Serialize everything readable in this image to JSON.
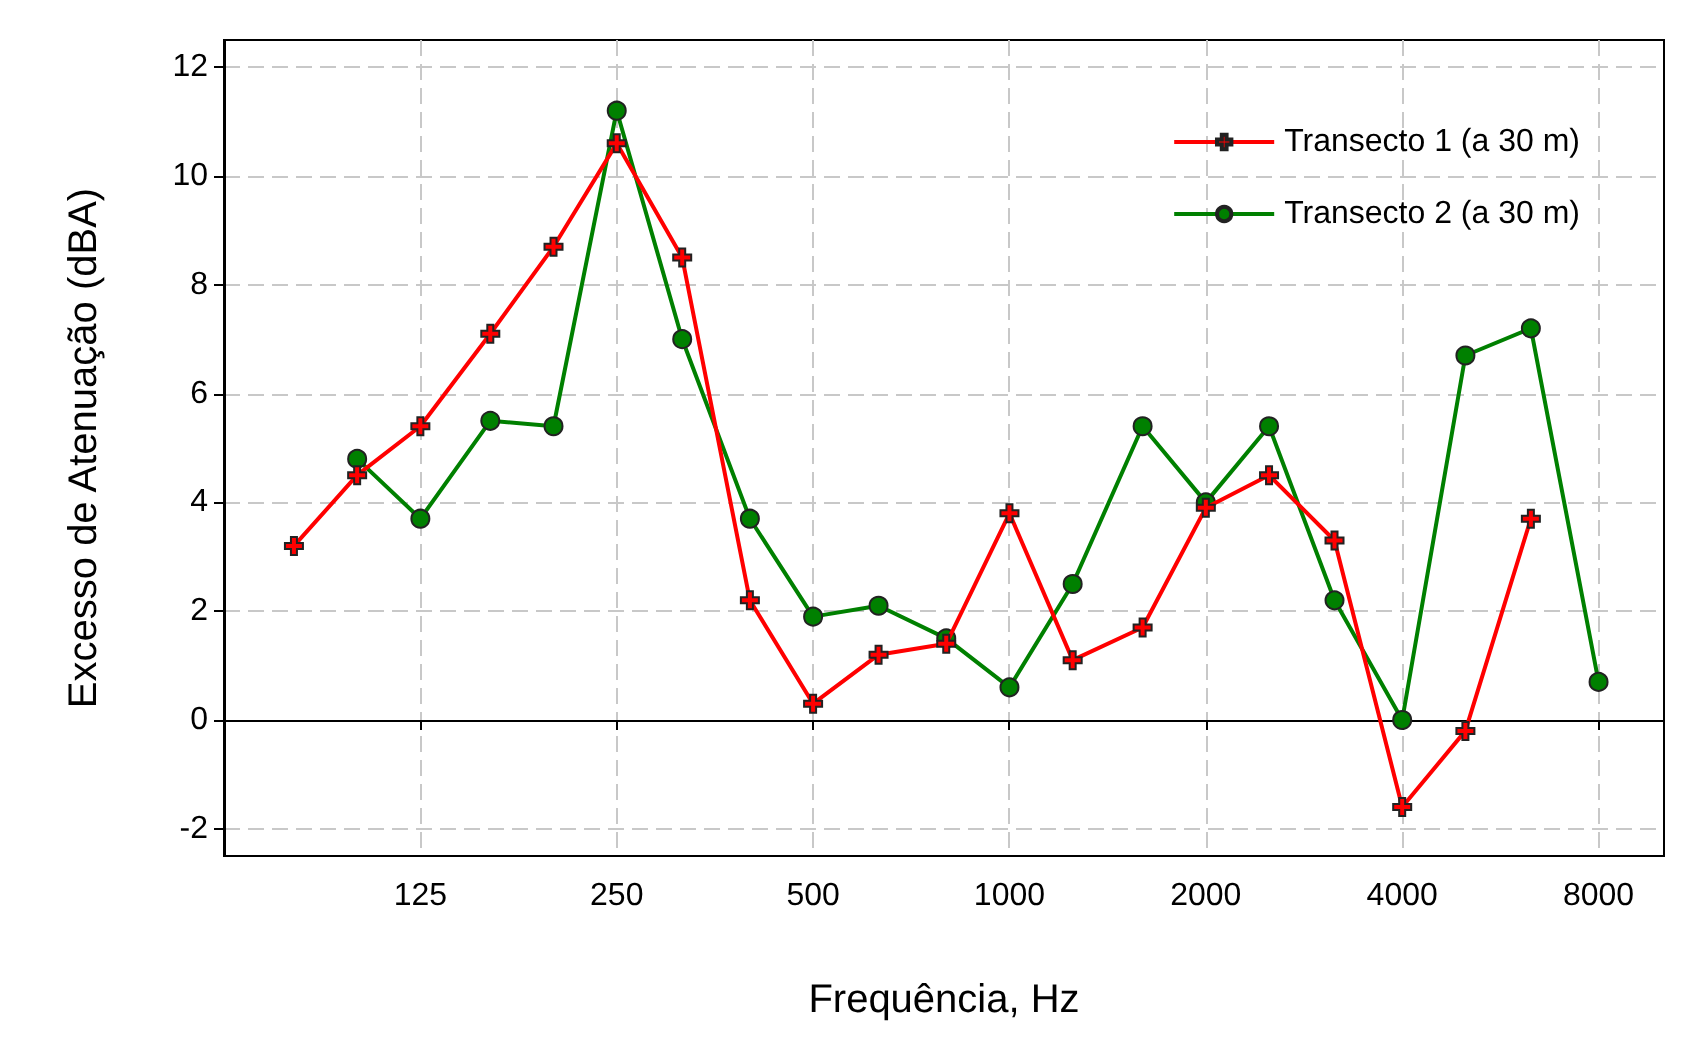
{
  "chart_data": {
    "type": "line",
    "xlabel": "Frequência, Hz",
    "ylabel": "Excesso de Atenuação (dBA)",
    "log": "x",
    "xlim": [
      62.5,
      10079
    ],
    "xticks": [
      125,
      250,
      500,
      1000,
      2000,
      4000,
      8000
    ],
    "ylim": [
      -2.5,
      12.5
    ],
    "yticks": [
      -2,
      0,
      2,
      4,
      6,
      8,
      10,
      12
    ],
    "grid": true,
    "legend": "top right",
    "line_style": "solid",
    "series": [
      {
        "name": "Transecto 1 (a 30 m)",
        "color": "#ff0000",
        "marker": "cross",
        "x": [
          80,
          100,
          125,
          160,
          200,
          250,
          315,
          400,
          500,
          630,
          800,
          1000,
          1250,
          1600,
          2000,
          2500,
          3150,
          4000,
          5000,
          6300
        ],
        "values": [
          3.2,
          4.5,
          5.4,
          7.1,
          8.7,
          10.6,
          8.5,
          2.2,
          0.3,
          1.2,
          1.4,
          3.8,
          1.1,
          1.7,
          3.9,
          4.5,
          3.3,
          -1.6,
          -0.2,
          3.7
        ]
      },
      {
        "name": "Transecto 2 (a 30 m)",
        "color": "#008000",
        "marker": "circle",
        "x": [
          100,
          125,
          160,
          200,
          250,
          315,
          400,
          500,
          630,
          800,
          1000,
          1250,
          1600,
          2000,
          2500,
          3150,
          4000,
          5000,
          6300,
          8000
        ],
        "values": [
          4.8,
          3.7,
          5.5,
          5.4,
          11.2,
          7.0,
          3.7,
          1.9,
          2.1,
          1.5,
          0.6,
          2.5,
          5.4,
          4.0,
          5.4,
          2.2,
          0.0,
          6.7,
          7.2,
          0.7
        ]
      }
    ]
  }
}
